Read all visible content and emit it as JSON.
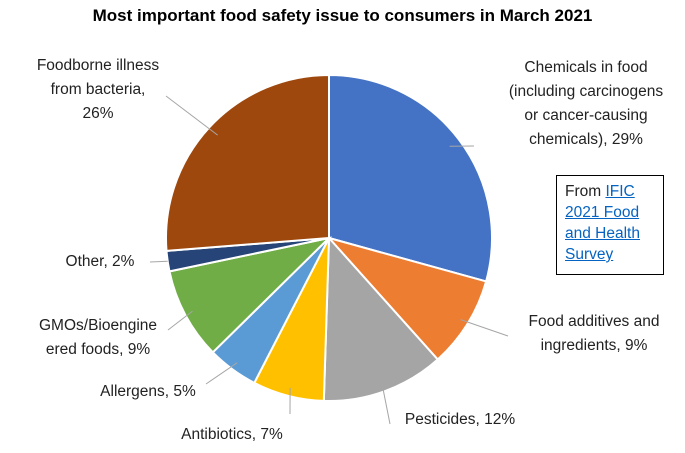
{
  "chart_data": {
    "type": "pie",
    "title": "Most important food safety issue to consumers in March 2021",
    "slices": [
      {
        "label_lines": [
          "Chemicals in food",
          "(including carcinogens",
          "or cancer-causing",
          "chemicals), 29%"
        ],
        "value": 29,
        "color": "#4472c4"
      },
      {
        "label_lines": [
          "Food additives and",
          "ingredients, 9%"
        ],
        "value": 9,
        "color": "#ed7d31"
      },
      {
        "label_lines": [
          "Pesticides, 12%"
        ],
        "value": 12,
        "color": "#a5a5a5"
      },
      {
        "label_lines": [
          "Antibiotics, 7%"
        ],
        "value": 7,
        "color": "#ffc000"
      },
      {
        "label_lines": [
          "Allergens, 5%"
        ],
        "value": 5,
        "color": "#5b9bd5"
      },
      {
        "label_lines": [
          "GMOs/Bioengine",
          "ered foods, 9%"
        ],
        "value": 9,
        "color": "#70ad47"
      },
      {
        "label_lines": [
          "Other, 2%"
        ],
        "value": 2,
        "color": "#264478"
      },
      {
        "label_lines": [
          "Foodborne illness",
          "from bacteria,",
          "26%"
        ],
        "value": 26,
        "color": "#9e480e"
      }
    ]
  },
  "source": {
    "prefix": "From ",
    "link_text": "IFIC 2021 Food and Health Survey"
  }
}
